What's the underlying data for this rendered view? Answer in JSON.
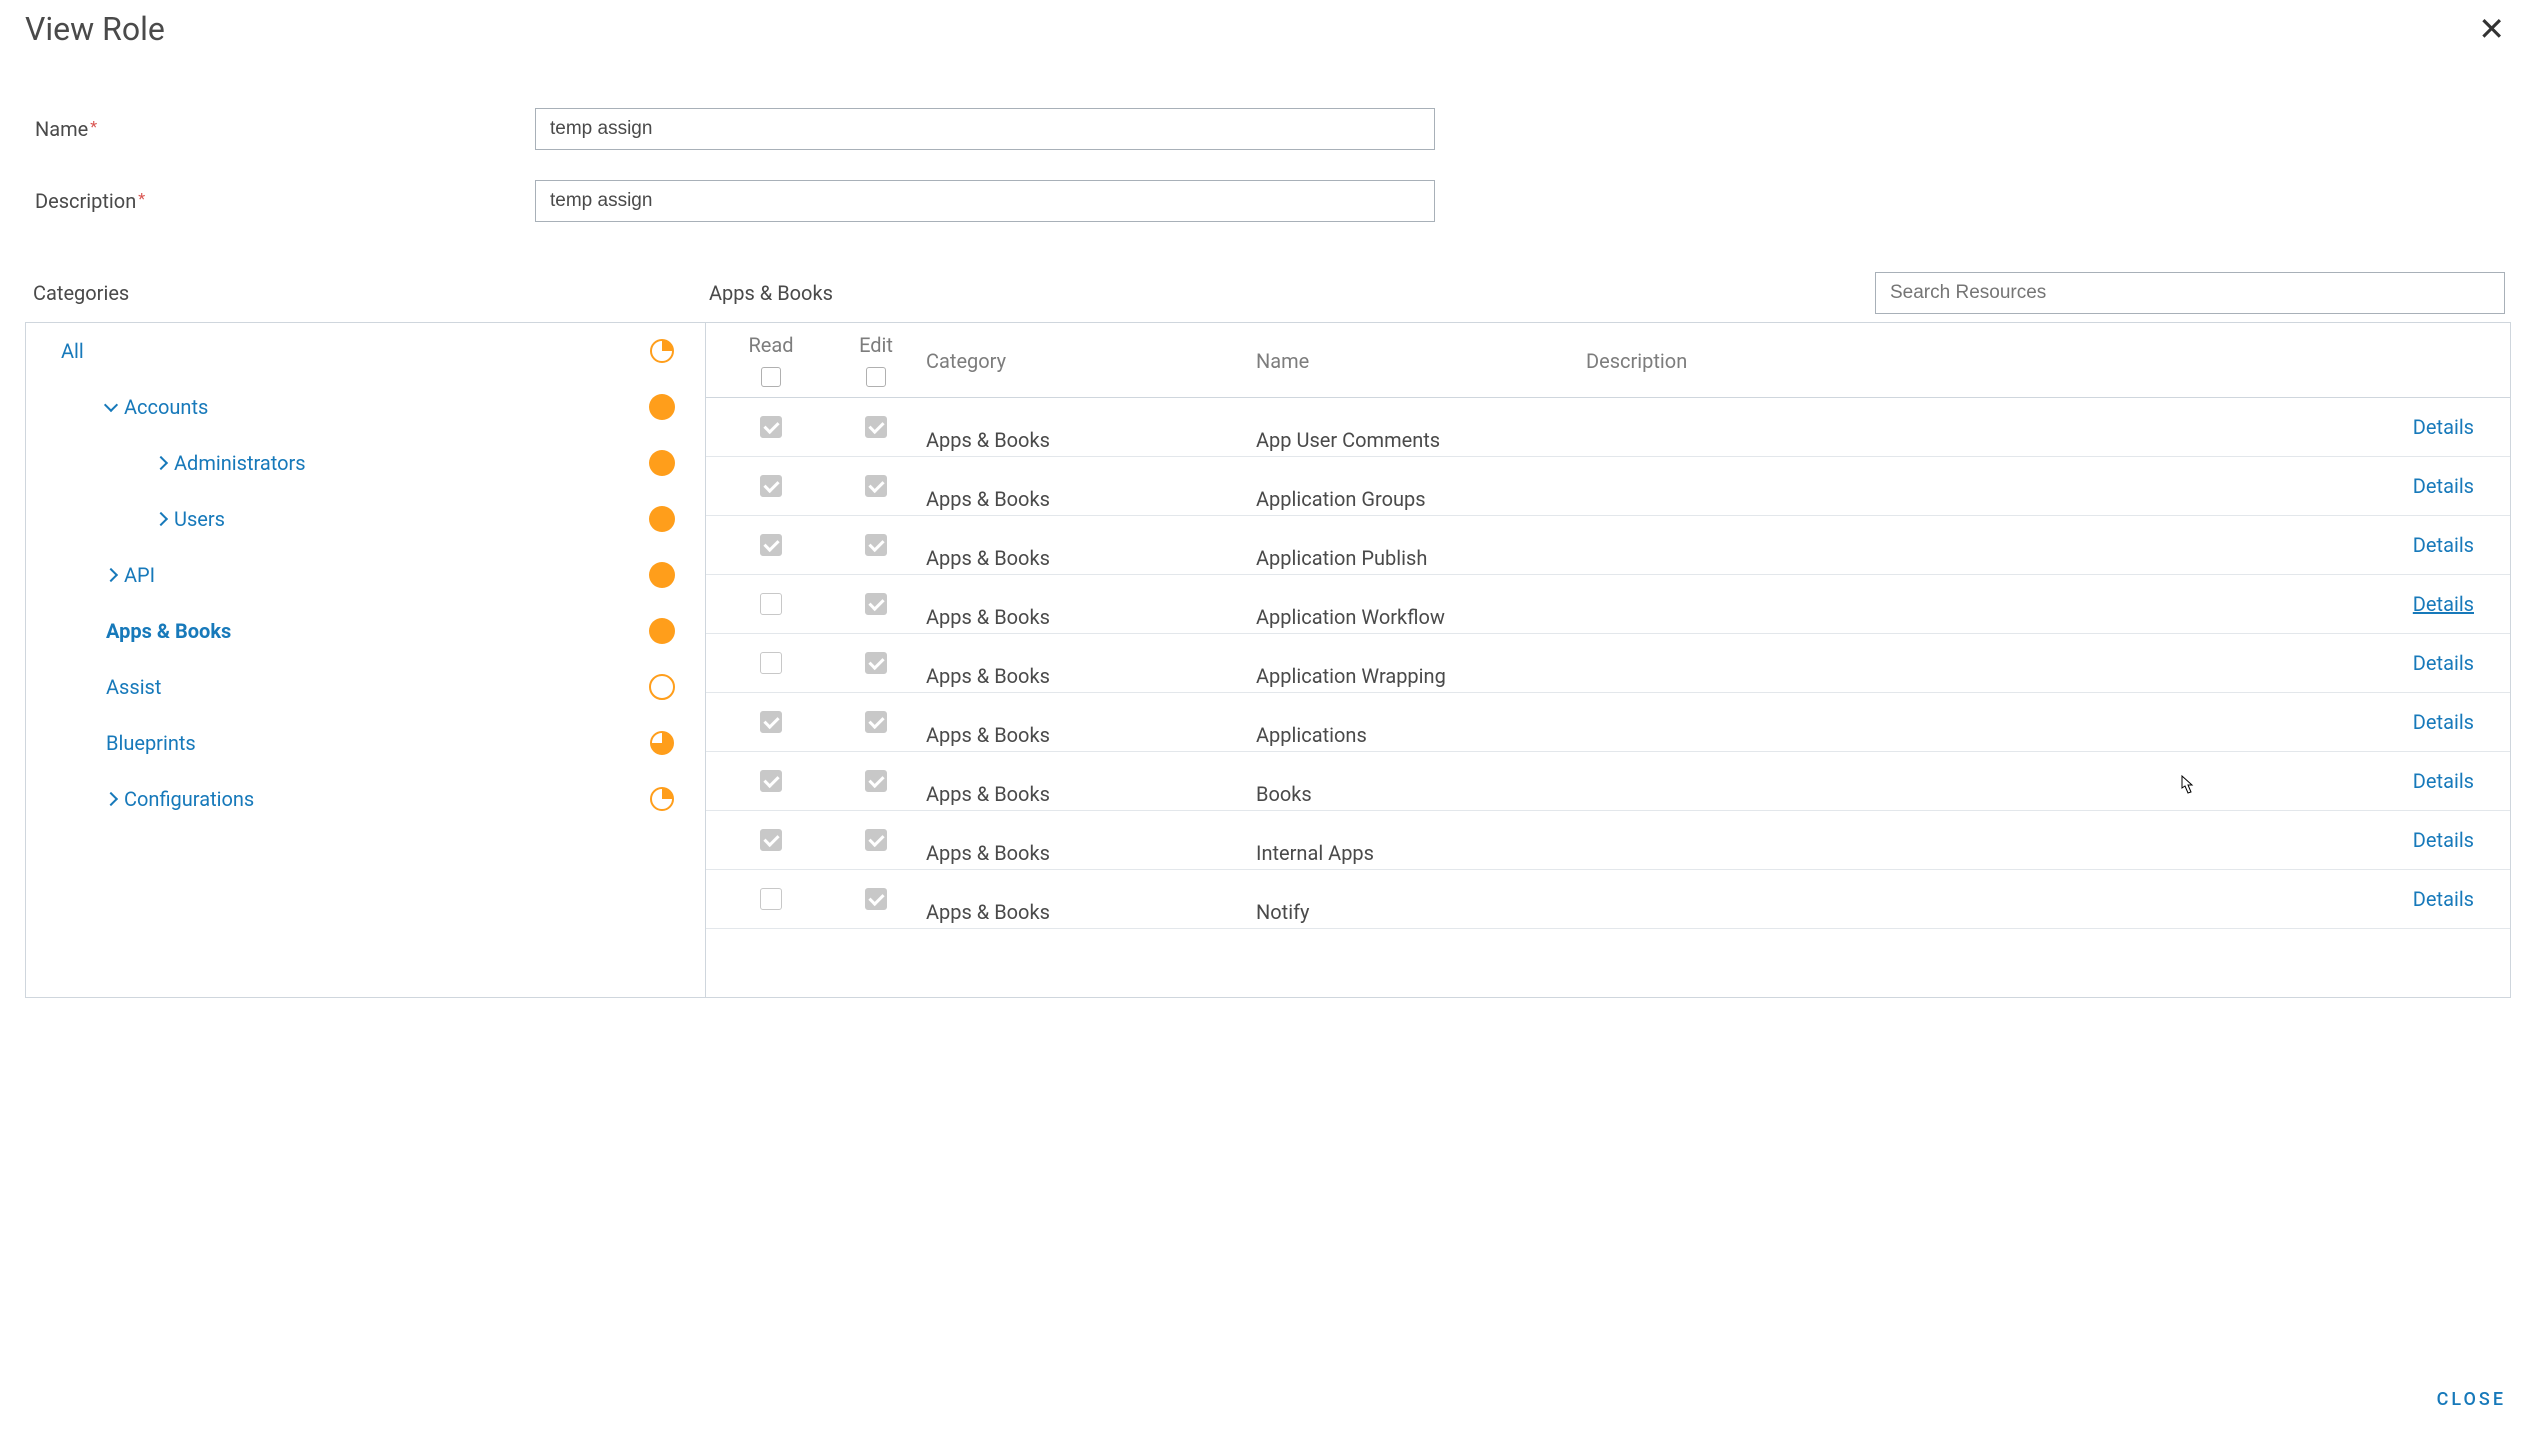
{
  "colors": {
    "link": "#1779ba",
    "text": "#4a4a4a",
    "border": "#cfd6dd",
    "indicator": "#ff9e1b",
    "required": "#d9534f",
    "muted": "#7d7d7d"
  },
  "dialog": {
    "title": "View Role"
  },
  "form": {
    "name_label": "Name",
    "name_value": "temp assign",
    "description_label": "Description",
    "description_value": "temp assign"
  },
  "labels": {
    "categories": "Categories",
    "current_category": "Apps & Books",
    "search_placeholder": "Search Resources",
    "close": "CLOSE",
    "details": "Details"
  },
  "table_headers": {
    "read": "Read",
    "edit": "Edit",
    "category": "Category",
    "name": "Name",
    "description": "Description"
  },
  "categories": [
    {
      "label": "All",
      "indent": 35,
      "chevron": null,
      "indicator": "quarter",
      "active": false
    },
    {
      "label": "Accounts",
      "indent": 80,
      "chevron": "down",
      "indicator": "full",
      "active": false
    },
    {
      "label": "Administrators",
      "indent": 130,
      "chevron": "right",
      "indicator": "full",
      "active": false
    },
    {
      "label": "Users",
      "indent": 130,
      "chevron": "right",
      "indicator": "full",
      "active": false
    },
    {
      "label": "API",
      "indent": 80,
      "chevron": "right",
      "indicator": "full",
      "active": false
    },
    {
      "label": "Apps & Books",
      "indent": 80,
      "chevron": null,
      "indicator": "full",
      "active": true
    },
    {
      "label": "Assist",
      "indent": 80,
      "chevron": null,
      "indicator": "empty",
      "active": false
    },
    {
      "label": "Blueprints",
      "indent": 80,
      "chevron": null,
      "indicator": "three-quarter",
      "active": false
    },
    {
      "label": "Configurations",
      "indent": 80,
      "chevron": "right",
      "indicator": "quarter",
      "active": false
    }
  ],
  "resources": [
    {
      "read": true,
      "edit": true,
      "category": "Apps & Books",
      "name": "App User Comments",
      "hover": false
    },
    {
      "read": true,
      "edit": true,
      "category": "Apps & Books",
      "name": "Application Groups",
      "hover": false
    },
    {
      "read": true,
      "edit": true,
      "category": "Apps & Books",
      "name": "Application Publish",
      "hover": false
    },
    {
      "read": false,
      "edit": true,
      "category": "Apps & Books",
      "name": "Application Workflow",
      "hover": true
    },
    {
      "read": false,
      "edit": true,
      "category": "Apps & Books",
      "name": "Application Wrapping",
      "hover": false
    },
    {
      "read": true,
      "edit": true,
      "category": "Apps & Books",
      "name": "Applications",
      "hover": false
    },
    {
      "read": true,
      "edit": true,
      "category": "Apps & Books",
      "name": "Books",
      "hover": false
    },
    {
      "read": true,
      "edit": true,
      "category": "Apps & Books",
      "name": "Internal Apps",
      "hover": false
    },
    {
      "read": false,
      "edit": true,
      "category": "Apps & Books",
      "name": "Notify",
      "hover": false
    }
  ]
}
